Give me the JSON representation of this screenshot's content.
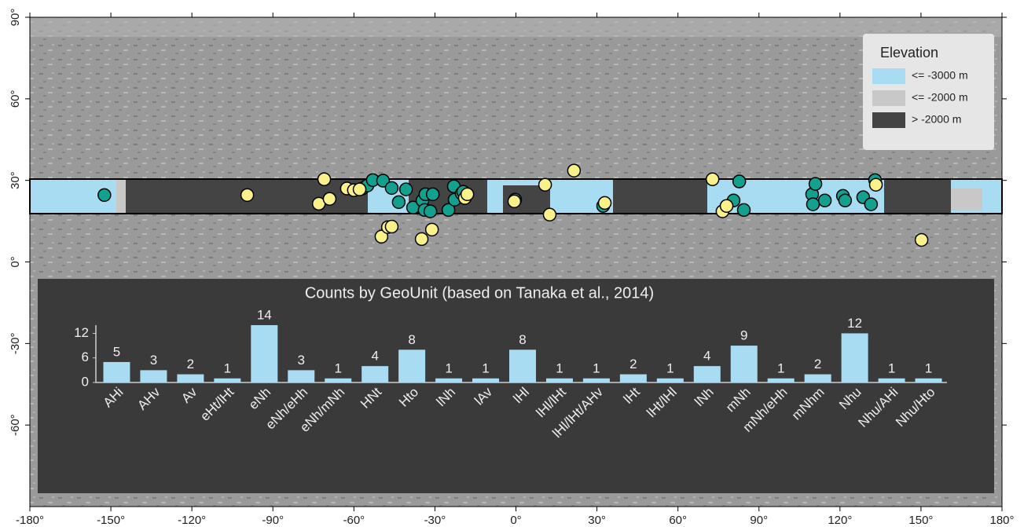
{
  "chart_data": [
    {
      "type": "scatter",
      "xlim": [
        -180,
        180
      ],
      "ylim": [
        -90,
        90
      ],
      "xticks": [
        {
          "value": -180,
          "label": "-180°"
        },
        {
          "value": -150,
          "label": "-150°"
        },
        {
          "value": -120,
          "label": "-120°"
        },
        {
          "value": -90,
          "label": "-90°"
        },
        {
          "value": -60,
          "label": "-60°"
        },
        {
          "value": -30,
          "label": "-30°"
        },
        {
          "value": 0,
          "label": "0°"
        },
        {
          "value": 30,
          "label": "30°"
        },
        {
          "value": 60,
          "label": "60°"
        },
        {
          "value": 90,
          "label": "90°"
        },
        {
          "value": 120,
          "label": "120°"
        },
        {
          "value": 150,
          "label": "150°"
        },
        {
          "value": 180,
          "label": "180°"
        }
      ],
      "yticks": [
        {
          "value": 90,
          "label": "90°"
        },
        {
          "value": 60,
          "label": "60°"
        },
        {
          "value": 30,
          "label": "30°"
        },
        {
          "value": 0,
          "label": "0°"
        },
        {
          "value": -30,
          "label": "-30°"
        },
        {
          "value": -60,
          "label": "-60°"
        }
      ],
      "legend": {
        "title": "Elevation",
        "entries": [
          {
            "label": "<= -3000 m",
            "color": "#a8dcf2"
          },
          {
            "label": "<= -2000 m",
            "color": "#c8c8c8"
          },
          {
            "label": "> -2000 m",
            "color": "#444444"
          }
        ]
      },
      "series": [
        {
          "color": "#14a08e",
          "x": [
            -152.4,
            -56.8,
            -55.0,
            -53.0,
            -49.2,
            -46.0,
            -40.7,
            -43.4,
            -38.1,
            -34.6,
            -33.8,
            -33.5,
            -31.7,
            -30.8,
            -25.0,
            -23.0,
            -22.7,
            -20.1,
            -19.5,
            -0.3,
            32.3,
            80.6,
            82.7,
            84.4,
            109.7,
            110.0,
            110.9,
            114.4,
            121.1,
            121.9,
            128.6,
            131.5,
            133.0
          ],
          "y": [
            24.6,
            27.0,
            28.1,
            30.1,
            29.9,
            27.2,
            26.7,
            22.0,
            20.0,
            22.6,
            19.1,
            24.9,
            18.6,
            24.9,
            19.1,
            27.8,
            22.9,
            25.2,
            25.8,
            22.9,
            20.6,
            22.6,
            29.6,
            19.1,
            24.9,
            21.2,
            28.7,
            22.6,
            24.3,
            22.6,
            23.8,
            21.2,
            30.1
          ]
        },
        {
          "color": "#fbf18a",
          "x": [
            -99.5,
            -71.0,
            -73.0,
            -69.0,
            -62.6,
            -60.0,
            -57.9,
            -49.8,
            -47.4,
            -46.0,
            -34.9,
            -31.1,
            -18.9,
            -18.0,
            -0.6,
            10.8,
            12.5,
            21.5,
            32.9,
            72.8,
            76.5,
            78.0,
            133.3,
            150.2
          ],
          "y": [
            24.6,
            30.4,
            21.4,
            23.2,
            27.0,
            26.4,
            26.7,
            9.3,
            12.8,
            13.0,
            8.4,
            11.9,
            23.5,
            24.9,
            22.3,
            28.4,
            17.4,
            33.6,
            21.7,
            30.4,
            18.6,
            20.6,
            28.4,
            8.1
          ]
        }
      ]
    },
    {
      "type": "bar",
      "title": "Counts by GeoUnit (based on Tanaka et al., 2014)",
      "categories": [
        "AHi",
        "AHv",
        "Av",
        "eHt/lHt",
        "eNh",
        "eNh/eHh",
        "eNh/mNh",
        "HNt",
        "Hto",
        "lNh",
        "lAv",
        "lHl",
        "lHl/lHt",
        "lHl/lHt/AHv",
        "lHt",
        "lHt/lHl",
        "lNh",
        "mNh",
        "mNh/eHh",
        "mNhm",
        "Nhu",
        "Nhu/AHi",
        "Nhu/Hto"
      ],
      "values": [
        5,
        3,
        2,
        1,
        14,
        3,
        1,
        4,
        8,
        1,
        1,
        8,
        1,
        1,
        2,
        1,
        4,
        9,
        1,
        2,
        12,
        1,
        1
      ],
      "color": "#a8dcf2",
      "ylim": [
        0,
        14
      ],
      "yticks": [
        0,
        6,
        12
      ]
    }
  ]
}
